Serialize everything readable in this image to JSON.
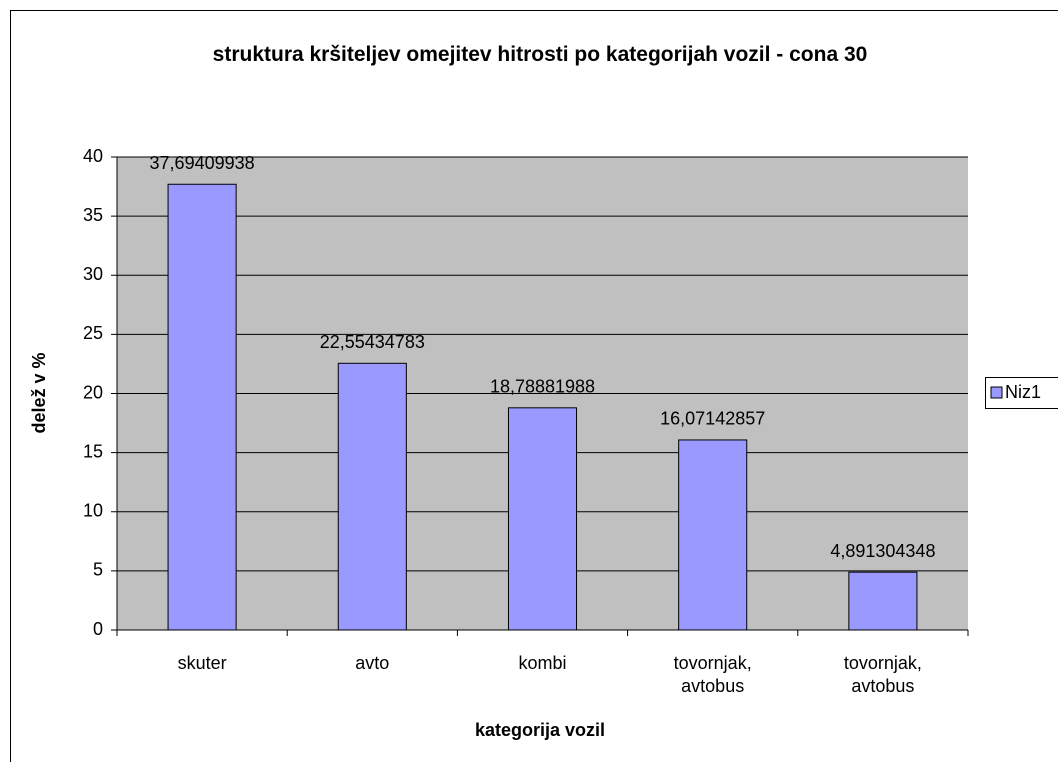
{
  "chart_data": {
    "type": "bar",
    "title": "struktura kršiteljev omejitev hitrosti po kategorijah vozil - cona 30",
    "x_label": "kategorija vozil",
    "y_label": "delež v %",
    "categories": [
      "skuter",
      "avto",
      "kombi",
      "tovornjak, avtobus",
      "tovornjak, avtobus"
    ],
    "series": [
      {
        "name": "Niz1",
        "color": "#9999ff",
        "values": [
          37.69409938,
          22.55434783,
          18.78881988,
          16.07142857,
          4.891304348
        ],
        "value_labels": [
          "37,69409938",
          "22,55434783",
          "18,78881988",
          "16,07142857",
          "4,891304348"
        ]
      }
    ],
    "ylim": [
      0,
      40
    ],
    "yticks": [
      0,
      5,
      10,
      15,
      20,
      25,
      30,
      35,
      40
    ],
    "grid": true,
    "legend": "right",
    "plot_background": "#c0c0c0"
  }
}
